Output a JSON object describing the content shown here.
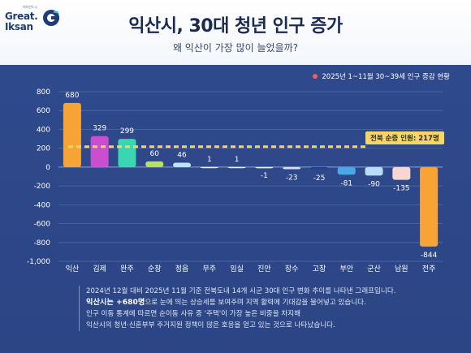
{
  "brand": {
    "logo_small": "위대한도시",
    "logo_line1": "Great.",
    "logo_line2": "Iksan"
  },
  "header": {
    "title": "익산시, 30대 청년 인구 증가",
    "subtitle": "왜 익산이 가장 많이 늘었을까?"
  },
  "colors": {
    "panel": "#2f4a8c",
    "avg_line": "#f7d566",
    "legend_dot": "#ff5a5a"
  },
  "chart_data": {
    "type": "bar",
    "title": "",
    "xlabel": "",
    "ylabel": "",
    "legend": "2025년 1~11월 30~39세 인구 증감 현황",
    "legend_position": "top-right",
    "categories": [
      "익산",
      "김제",
      "완주",
      "순창",
      "정읍",
      "무주",
      "임실",
      "진안",
      "장수",
      "고창",
      "부안",
      "군산",
      "남원",
      "전주"
    ],
    "values": [
      680,
      329,
      299,
      60,
      46,
      1,
      1,
      -1,
      -23,
      -25,
      -81,
      -90,
      -135,
      -844
    ],
    "bar_colors": [
      "#f7a335",
      "#c94fd0",
      "#39d6b1",
      "#b6e35e",
      "#bfe6f7",
      "#e6eef8",
      "#e6eef8",
      "#e6eef8",
      "#e2dcf4",
      "#1f3f94",
      "#4aa7e8",
      "#b9dcfa",
      "#f6d6cf",
      "#f7a335"
    ],
    "ylim": [
      -1000,
      800
    ],
    "yticks": [
      800,
      600,
      400,
      200,
      0,
      -200,
      -400,
      -600,
      -800,
      -1000
    ],
    "ytick_labels": [
      "800",
      "600",
      "400",
      "200",
      "0",
      "-200",
      "-400",
      "-600",
      "-800",
      "-1,000"
    ],
    "grid": true,
    "average": {
      "value": 217,
      "label": "전북 순증 인원: 217명"
    }
  },
  "description": {
    "line1": "2024년 12월 대비 2025년 11월 기준 전북도내 14개 시군 30대 인구 변화 추이를 나타낸 그래프입니다.",
    "line2_highlight": "익산시는 +680명",
    "line2_rest": "으로 눈에 띄는 상승세를 보여주며 지역 활력에 기대감을 불어넣고 있습니다.",
    "line3": "인구 이동 통계에 따르면 순이동 사유 중 '주택'이 가장 높은 비중을 차지해",
    "line4": "익산시의 청년·신혼부부 주거지원 정책이 많은 호응을 얻고 있는 것으로 나타났습니다."
  }
}
